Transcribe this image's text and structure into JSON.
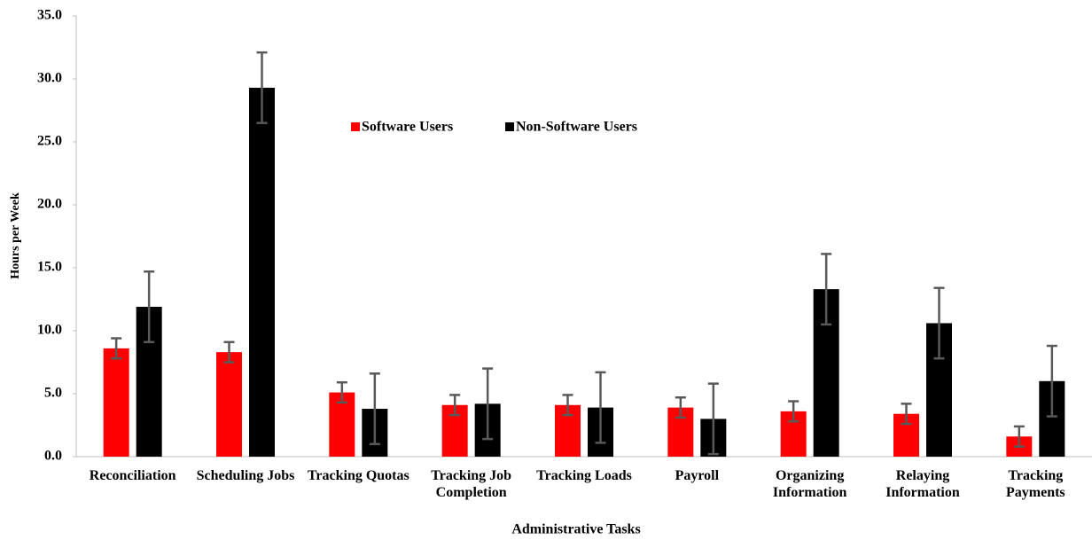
{
  "chart_data": {
    "type": "bar",
    "categories": [
      "Reconciliation",
      "Scheduling Jobs",
      "Tracking Quotas",
      "Tracking Job Completion",
      "Tracking Loads",
      "Payroll",
      "Organizing Information",
      "Relaying Information",
      "Tracking Payments"
    ],
    "series": [
      {
        "name": "Software Users",
        "color": "#ff0000",
        "values": [
          8.6,
          8.3,
          5.1,
          4.1,
          4.1,
          3.9,
          3.6,
          3.4,
          1.6
        ],
        "errors": [
          0.8,
          0.8,
          0.8,
          0.8,
          0.8,
          0.8,
          0.8,
          0.8,
          0.8
        ]
      },
      {
        "name": "Non-Software Users",
        "color": "#000000",
        "values": [
          11.9,
          29.3,
          3.8,
          4.2,
          3.9,
          3.0,
          13.3,
          10.6,
          6.0
        ],
        "errors": [
          2.8,
          2.8,
          2.8,
          2.8,
          2.8,
          2.8,
          2.8,
          2.8,
          2.8
        ]
      }
    ],
    "error_color": "#595959",
    "xlabel": "Administrative Tasks",
    "ylabel": "Hours per Week",
    "ylim": [
      0,
      35
    ],
    "yticks": [
      {
        "value": 0,
        "label": "0.0"
      },
      {
        "value": 5,
        "label": "5.0"
      },
      {
        "value": 10,
        "label": "10.0"
      },
      {
        "value": 15,
        "label": "15.0"
      },
      {
        "value": 20,
        "label": "20.0"
      },
      {
        "value": 25,
        "label": "25.0"
      },
      {
        "value": 30,
        "label": "30.0"
      },
      {
        "value": 35,
        "label": "35.0"
      }
    ],
    "grid": false,
    "legend": "top"
  }
}
